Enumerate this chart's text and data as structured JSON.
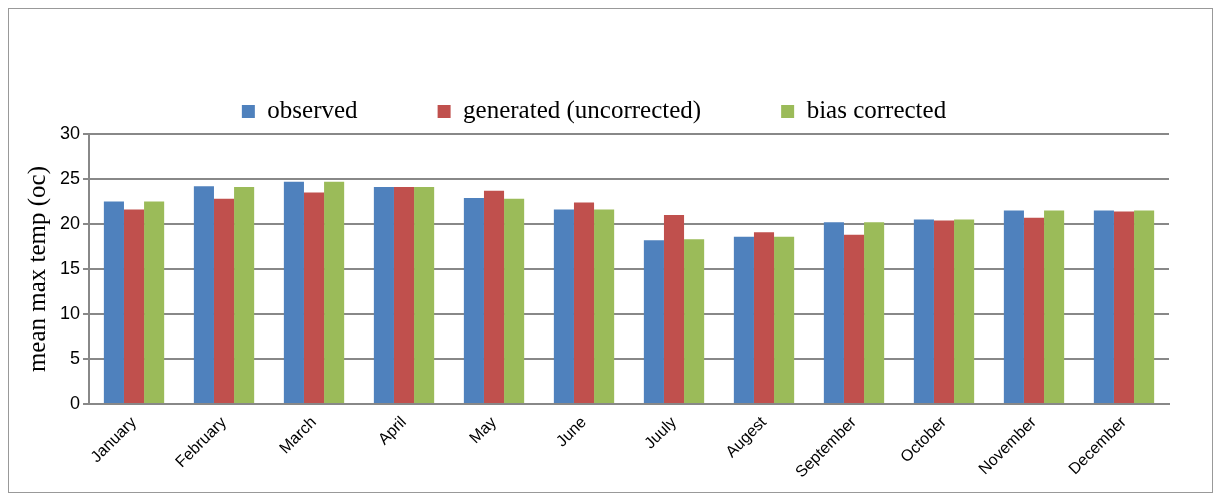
{
  "chart_data": {
    "type": "bar",
    "ylabel": "mean max temp (oc)",
    "categories": [
      "January",
      "February",
      "March",
      "April",
      "May",
      "June",
      "Juuly",
      "Augest",
      "September",
      "October",
      "November",
      "December"
    ],
    "series": [
      {
        "name": "observed",
        "color": "#4f81bd",
        "values": [
          22.5,
          24.2,
          24.7,
          24.1,
          22.9,
          21.6,
          18.2,
          18.6,
          20.2,
          20.5,
          21.5,
          21.5
        ]
      },
      {
        "name": "generated (uncorrected)",
        "color": "#c0504d",
        "values": [
          21.6,
          22.8,
          23.5,
          24.1,
          23.7,
          22.4,
          21.0,
          19.1,
          18.8,
          20.4,
          20.7,
          21.4
        ]
      },
      {
        "name": "bias corrected",
        "color": "#9bbb59",
        "values": [
          22.5,
          24.1,
          24.7,
          24.1,
          22.8,
          21.6,
          18.3,
          18.6,
          20.2,
          20.5,
          21.5,
          21.5
        ]
      }
    ],
    "ylim": [
      0,
      30
    ],
    "yticks": [
      0,
      5,
      10,
      15,
      20,
      25,
      30
    ],
    "grid": "y",
    "legend": "top"
  }
}
